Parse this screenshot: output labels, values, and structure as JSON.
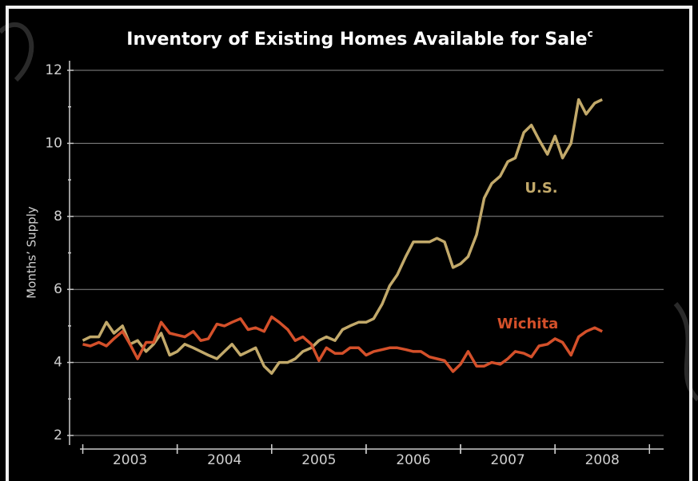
{
  "chart_data": {
    "type": "line",
    "title": "Inventory of Existing Homes Available for Sale",
    "title_superscript": "c",
    "y_label": "Months’ Supply",
    "x": [
      2003,
      2003.08,
      2003.17,
      2003.25,
      2003.33,
      2003.42,
      2003.5,
      2003.58,
      2003.67,
      2003.75,
      2003.83,
      2003.92,
      2004,
      2004.08,
      2004.17,
      2004.25,
      2004.33,
      2004.42,
      2004.5,
      2004.58,
      2004.67,
      2004.75,
      2004.83,
      2004.92,
      2005,
      2005.08,
      2005.17,
      2005.25,
      2005.33,
      2005.42,
      2005.5,
      2005.58,
      2005.67,
      2005.75,
      2005.83,
      2005.92,
      2006,
      2006.08,
      2006.17,
      2006.25,
      2006.33,
      2006.42,
      2006.5,
      2006.58,
      2006.67,
      2006.75,
      2006.83,
      2006.92,
      2007,
      2007.08,
      2007.17,
      2007.25,
      2007.33,
      2007.42,
      2007.5,
      2007.58,
      2007.67,
      2007.75,
      2007.83,
      2007.92,
      2008,
      2008.08,
      2008.17,
      2008.25,
      2008.33,
      2008.42,
      2008.5
    ],
    "series": [
      {
        "name": "U.S.",
        "color": "#c2a96a",
        "values": [
          4.6,
          4.7,
          4.7,
          5.1,
          4.8,
          5.0,
          4.5,
          4.6,
          4.3,
          4.5,
          4.8,
          4.2,
          4.3,
          4.5,
          4.4,
          4.3,
          4.2,
          4.1,
          4.3,
          4.5,
          4.2,
          4.3,
          4.4,
          3.9,
          3.7,
          4.0,
          4.0,
          4.1,
          4.3,
          4.4,
          4.6,
          4.7,
          4.6,
          4.9,
          5.0,
          5.1,
          5.1,
          5.2,
          5.6,
          6.1,
          6.4,
          6.9,
          7.3,
          7.3,
          7.3,
          7.4,
          7.3,
          6.6,
          6.7,
          6.9,
          7.5,
          8.5,
          8.9,
          9.1,
          9.5,
          9.6,
          10.3,
          10.5,
          10.1,
          9.7,
          10.2,
          9.6,
          10.0,
          11.2,
          10.8,
          11.1,
          11.2
        ]
      },
      {
        "name": "Wichita",
        "color": "#d4502a",
        "values": [
          4.5,
          4.45,
          4.55,
          4.45,
          4.65,
          4.85,
          4.5,
          4.1,
          4.55,
          4.55,
          5.1,
          4.8,
          4.75,
          4.7,
          4.85,
          4.6,
          4.65,
          5.05,
          5.0,
          5.1,
          5.2,
          4.9,
          4.95,
          4.85,
          5.25,
          5.1,
          4.9,
          4.6,
          4.7,
          4.5,
          4.05,
          4.4,
          4.25,
          4.25,
          4.4,
          4.4,
          4.2,
          4.3,
          4.35,
          4.4,
          4.4,
          4.35,
          4.3,
          4.3,
          4.15,
          4.1,
          4.05,
          3.75,
          3.95,
          4.3,
          3.9,
          3.9,
          4.0,
          3.95,
          4.1,
          4.3,
          4.25,
          4.15,
          4.45,
          4.5,
          4.65,
          4.55,
          4.2,
          4.7,
          4.85,
          4.95,
          4.85
        ]
      }
    ],
    "xlim": [
      2002.97,
      2009.15
    ],
    "xticks": [
      {
        "value": 2003.5,
        "label": "2003"
      },
      {
        "value": 2004.5,
        "label": "2004"
      },
      {
        "value": 2005.5,
        "label": "2005"
      },
      {
        "value": 2006.5,
        "label": "2006"
      },
      {
        "value": 2007.5,
        "label": "2007"
      },
      {
        "value": 2008.5,
        "label": "2008"
      }
    ],
    "ylim": [
      2,
      12
    ],
    "yticks": [
      2,
      4,
      6,
      8,
      10,
      12
    ],
    "grid": true
  }
}
